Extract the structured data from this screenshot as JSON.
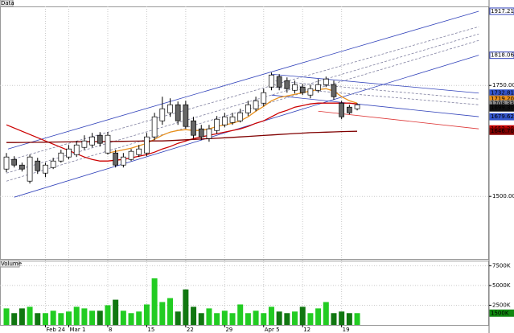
{
  "chart_data": [
    {
      "type": "candlestick",
      "title": "Data",
      "categories": [
        null,
        null,
        null,
        null,
        null,
        "Feb 24",
        null,
        null,
        "Mar 1",
        null,
        null,
        null,
        null,
        "8",
        null,
        null,
        null,
        null,
        "15",
        null,
        null,
        null,
        null,
        "22",
        null,
        null,
        null,
        null,
        "29",
        null,
        null,
        null,
        null,
        "Apr 5",
        null,
        null,
        null,
        null,
        "12",
        null,
        null,
        null,
        null,
        "19",
        null,
        null
      ],
      "open": [
        1561.6,
        1583.3,
        1570.6,
        1534.4,
        1579.7,
        1552.5,
        1565.2,
        1579.7,
        1588.8,
        1594.2,
        1610.5,
        1615.9,
        1637.7,
        1597.8,
        1597.8,
        1570.6,
        1583.3,
        1594.2,
        1597.8,
        1634.1,
        1670.3,
        1688.4,
        1706.5,
        1706.5,
        1670.3,
        1652.2,
        1630.4,
        1648.5,
        1661.2,
        1666.6,
        1670.3,
        1688.4,
        1697.4,
        1710.1,
        1746.4,
        1769.9,
        1760.9,
        1739.1,
        1746.4,
        1728.3,
        1739.1,
        1751.8,
        1751.8,
        1710.1,
        1701.1,
        1697.4
      ],
      "high": [
        1597.8,
        1590.6,
        1576.1,
        1594.2,
        1587.0,
        1576.1,
        1587.0,
        1605.1,
        1615.9,
        1625.0,
        1637.7,
        1643.1,
        1644.9,
        1644.9,
        1605.1,
        1597.8,
        1606.9,
        1615.9,
        1643.1,
        1688.4,
        1724.6,
        1721.0,
        1713.8,
        1715.5,
        1679.3,
        1661.2,
        1661.2,
        1681.2,
        1688.4,
        1688.4,
        1697.4,
        1715.5,
        1724.6,
        1742.7,
        1779.0,
        1775.4,
        1768.1,
        1760.9,
        1753.6,
        1751.8,
        1764.5,
        1769.9,
        1760.9,
        1715.5,
        1706.5,
        1710.1
      ],
      "low": [
        1554.3,
        1565.2,
        1556.1,
        1529.0,
        1550.7,
        1543.4,
        1561.6,
        1576.1,
        1583.3,
        1588.8,
        1605.1,
        1610.5,
        1612.3,
        1594.2,
        1565.2,
        1565.2,
        1579.7,
        1588.8,
        1590.6,
        1626.8,
        1661.2,
        1679.3,
        1661.2,
        1652.2,
        1630.4,
        1626.8,
        1623.2,
        1641.3,
        1655.8,
        1661.2,
        1666.6,
        1681.2,
        1692.0,
        1702.9,
        1739.1,
        1739.1,
        1733.7,
        1731.9,
        1728.3,
        1721.0,
        1733.7,
        1746.4,
        1717.4,
        1673.9,
        1684.8,
        1693.8
      ],
      "close": [
        1588.8,
        1570.6,
        1561.6,
        1588.8,
        1557.9,
        1570.6,
        1579.7,
        1597.8,
        1606.9,
        1615.9,
        1625.0,
        1634.1,
        1619.6,
        1637.7,
        1570.6,
        1588.8,
        1601.5,
        1606.9,
        1634.1,
        1679.3,
        1697.4,
        1706.5,
        1670.3,
        1657.6,
        1637.7,
        1634.1,
        1652.2,
        1673.9,
        1679.3,
        1679.3,
        1688.4,
        1706.5,
        1715.5,
        1733.7,
        1773.5,
        1746.4,
        1742.7,
        1751.8,
        1733.7,
        1742.7,
        1751.8,
        1764.5,
        1724.6,
        1679.3,
        1688.4,
        1706.5
      ],
      "up_color": "#ffffff",
      "down_color": "#666666",
      "candle_outline": "#000000",
      "series": [
        {
          "color": "#cc0000",
          "values": [
            1661.2,
            1654.0,
            1646.7,
            1639.5,
            1632.2,
            1625.0,
            1617.8,
            1610.5,
            1603.3,
            1596.0,
            1588.8,
            1583.3,
            1579.7,
            1579.7,
            1581.5,
            1583.3,
            1587.0,
            1590.6,
            1594.2,
            1599.6,
            1606.9,
            1612.3,
            1619.6,
            1625.0,
            1630.4,
            1634.1,
            1637.7,
            1641.3,
            1644.9,
            1648.5,
            1652.2,
            1657.6,
            1664.9,
            1670.3,
            1679.3,
            1688.4,
            1693.8,
            1701.1,
            1704.7,
            1708.3,
            1710.1,
            1710.1,
            1710.1,
            1710.1,
            1710.1,
            1708.3
          ]
        },
        {
          "color": "#e8901c",
          "values": [
            null,
            null,
            null,
            null,
            null,
            null,
            null,
            null,
            null,
            null,
            null,
            null,
            null,
            1597.8,
            1601.5,
            1605.1,
            1608.7,
            1614.1,
            1619.6,
            1628.6,
            1637.7,
            1644.9,
            1648.5,
            1650.4,
            1648.5,
            1648.5,
            1652.2,
            1657.6,
            1661.2,
            1664.9,
            1670.3,
            1679.3,
            1692.0,
            1702.9,
            1715.5,
            1722.8,
            1726.5,
            1730.1,
            1733.7,
            1737.3,
            1740.9,
            1742.7,
            1737.3,
            1724.6,
            1715.5,
            1710.1
          ]
        },
        {
          "color": "#800000",
          "values": [
            1621.4,
            1621.4,
            1621.6,
            1621.8,
            1622.0,
            1622.2,
            1622.4,
            1622.6,
            1622.8,
            1623.0,
            1623.2,
            1623.4,
            1623.6,
            1623.8,
            1624.0,
            1624.2,
            1624.4,
            1624.6,
            1624.8,
            1625.0,
            1625.0,
            1625.8,
            1626.6,
            1627.5,
            1628.4,
            1629.3,
            1630.2,
            1631.0,
            1632.0,
            1633.0,
            1634.1,
            1635.2,
            1636.3,
            1637.4,
            1638.5,
            1639.5,
            1640.6,
            1641.6,
            1642.6,
            1643.6,
            1644.2,
            1644.8,
            1645.4,
            1646.0,
            1646.4,
            1646.7
          ]
        }
      ],
      "trendlines": [
        {
          "color": "#3344bb",
          "dash": false,
          "x": [
            0.2,
            60.6
          ],
          "values": [
            1606.9,
            1917.2106
          ]
        },
        {
          "color": "#3344bb",
          "dash": false,
          "x": [
            1,
            60.6
          ],
          "values": [
            1498.2,
            1818.0698
          ]
        },
        {
          "color": "#8080a0",
          "dash": true,
          "x": [
            0,
            60.6
          ],
          "values": [
            1579.7,
            1882.3
          ]
        },
        {
          "color": "#8080a0",
          "dash": true,
          "x": [
            0,
            60.6
          ],
          "values": [
            1552.5,
            1866.0
          ]
        },
        {
          "color": "#8080a0",
          "dash": true,
          "x": [
            0,
            60.6
          ],
          "values": [
            1534.4,
            1851.4
          ]
        },
        {
          "color": "#3344bb",
          "dash": false,
          "x": [
            34,
            60.6
          ],
          "values": [
            1775.4,
            1732.81
          ]
        },
        {
          "color": "#8080a0",
          "dash": true,
          "x": [
            34,
            60.6
          ],
          "values": [
            1760.9,
            1719.2
          ]
        },
        {
          "color": "#8080a0",
          "dash": true,
          "x": [
            34,
            60.6
          ],
          "values": [
            1746.4,
            1706.5
          ]
        },
        {
          "color": "#3344bb",
          "dash": false,
          "x": [
            34,
            60.6
          ],
          "values": [
            1728.3,
            1679.62
          ]
        },
        {
          "color": "#dd3333",
          "dash": false,
          "x": [
            40,
            60.6
          ],
          "values": [
            1692.0,
            1652.2
          ]
        }
      ],
      "markers": [
        {
          "value": 1917.2106,
          "label": "1917.2106",
          "color": "#3344bb",
          "filled": false
        },
        {
          "value": 1818.0698,
          "label": "1818.0698",
          "color": "#3344bb",
          "filled": false
        },
        {
          "value": 1732.81,
          "label": "1732.81",
          "color": "#3355cc",
          "filled": true
        },
        {
          "value": 1719.2,
          "label": "1719.20",
          "color": "#e8901c",
          "filled": true
        },
        {
          "value": 1708.33,
          "label": "1708.33",
          "color": "#888888",
          "filled": true
        },
        {
          "value": 1699.3,
          "label": "1699.30",
          "color": "#111111",
          "filled": true
        },
        {
          "value": 1679.62,
          "label": "1679.62",
          "color": "#3355cc",
          "filled": true
        },
        {
          "value": 1652.2,
          "label": "1652.20",
          "color": "#cc0000",
          "filled": true
        },
        {
          "value": 1646.7,
          "label": "1646.70",
          "color": "#800000",
          "filled": true
        }
      ],
      "ylim": [
        1359,
        1928
      ],
      "yticks": [
        {
          "value": 1500,
          "label": "1500.00"
        },
        {
          "value": 1750,
          "label": "1750.00"
        }
      ],
      "grid": true
    },
    {
      "type": "bar",
      "title": "Volume",
      "values": [
        2100,
        1500,
        2100,
        2300,
        1500,
        1500,
        1800,
        1500,
        1700,
        2300,
        2100,
        1800,
        1800,
        2500,
        3200,
        1800,
        1500,
        1700,
        2600,
        5900,
        2900,
        3400,
        1700,
        4500,
        2300,
        1500,
        2100,
        1500,
        1800,
        1500,
        2600,
        1500,
        1800,
        1500,
        2300,
        1700,
        1500,
        1700,
        2300,
        1500,
        2100,
        2900,
        1500,
        1700,
        1500,
        1500
      ],
      "up_color": "#22cc22",
      "down_color": "#117711",
      "markers": [
        {
          "value": 1500,
          "label": "1500K",
          "color": "#118811",
          "filled": true
        }
      ],
      "ylim": [
        0,
        8150
      ],
      "yticks": [
        {
          "value": 2500,
          "label": "2500K"
        },
        {
          "value": 5000,
          "label": "5000K"
        },
        {
          "value": 7500,
          "label": "7500K"
        }
      ],
      "grid": true
    }
  ]
}
